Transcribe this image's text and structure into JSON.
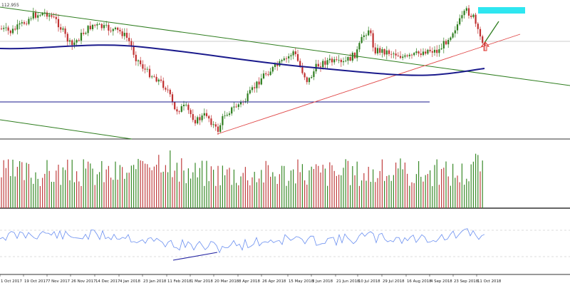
{
  "chart_data": [
    {
      "type": "candlestick",
      "panel": "price",
      "price_label": "112.955",
      "price_scale_note": "Only the top price label is printed; candle values are approximate pixel-read estimates on a normalized scale.",
      "indicators": [
        {
          "name": "Moving average",
          "color": "#1a1a8c"
        },
        {
          "name": "Downtrend channel",
          "color": "#2e7d1e"
        },
        {
          "name": "Uptrend line",
          "color": "#e04848"
        },
        {
          "name": "Horizontal support",
          "color": "#1a1a8c"
        }
      ],
      "annotations": [
        {
          "kind": "target-box",
          "color": "#2ee6f0"
        },
        {
          "kind": "up-arrow",
          "color": "#e0302a"
        },
        {
          "kind": "projection-line",
          "color": "#2e7d1e"
        }
      ],
      "candle_up_color": "#2e7d1e",
      "candle_down_color": "#c03030"
    },
    {
      "type": "bar",
      "panel": "volume",
      "up_color": "#3a8a2a",
      "down_color": "#c04040"
    },
    {
      "type": "line",
      "panel": "oscillator",
      "line_color": "#6a8ff0",
      "divergence_color": "#2020a0"
    }
  ],
  "x_axis": {
    "tick_labels": [
      "1 Oct 2017",
      "19 Oct 2017",
      "7 Nov 2017",
      "26 Nov 2017",
      "14 Dec 2017",
      "4 Jan 2018",
      "23 Jan 2018",
      "11 Feb 2018",
      "1 Mar 2018",
      "20 Mar 2018",
      "8 Apr 2018",
      "26 Apr 2018",
      "15 May 2018",
      "3 Jun 2018",
      "21 Jun 2018",
      "10 Jul 2018",
      "29 Jul 2018",
      "16 Aug 2018",
      "4 Sep 2018",
      "23 Sep 2018",
      "11 Oct 2018"
    ]
  }
}
